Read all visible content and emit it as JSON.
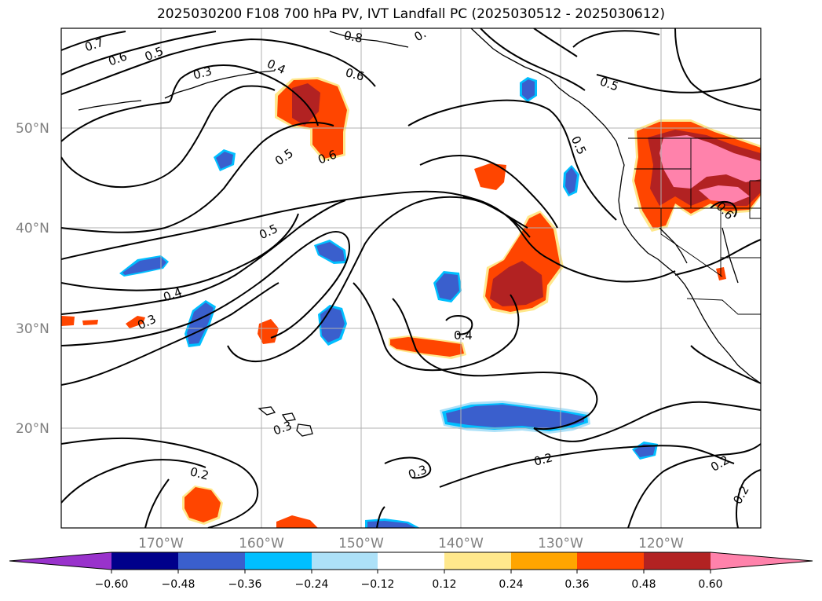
{
  "title": "2025030200 F108 700 hPa PV, IVT Landfall PC (2025030512 - 2025030612)",
  "map": {
    "lat_labels": [
      "50°N",
      "40°N",
      "30°N",
      "20°N"
    ],
    "lon_labels": [
      "170°W",
      "160°W",
      "150°W",
      "140°W",
      "130°W",
      "120°W"
    ],
    "lat_range": [
      10,
      60
    ],
    "lon_range": [
      -180,
      -110
    ]
  },
  "colorbar": {
    "ticks": [
      "−0.60",
      "−0.48",
      "−0.36",
      "−0.24",
      "−0.12",
      "0.12",
      "0.24",
      "0.36",
      "0.48",
      "0.60"
    ],
    "colors": [
      "#9932CC",
      "#00008B",
      "#3A5FCD",
      "#00BFFF",
      "#ADE1F8",
      "#FFFFFF",
      "#FFE88C",
      "#FFA500",
      "#FF4500",
      "#B22222",
      "#FF82AB"
    ],
    "extend": "both"
  },
  "contour_labels": [
    "0.7",
    "0.6",
    "0.5",
    "0.3",
    "0.4",
    "0.8",
    "0.",
    "0.6",
    "0.5",
    "0.5",
    "0.6",
    "0.5",
    "0.5",
    "0.4",
    "0.3",
    "0.4",
    "0.3",
    "0.2",
    "0.3",
    "0.2",
    "0.2",
    "0.2",
    "0.6"
  ]
}
